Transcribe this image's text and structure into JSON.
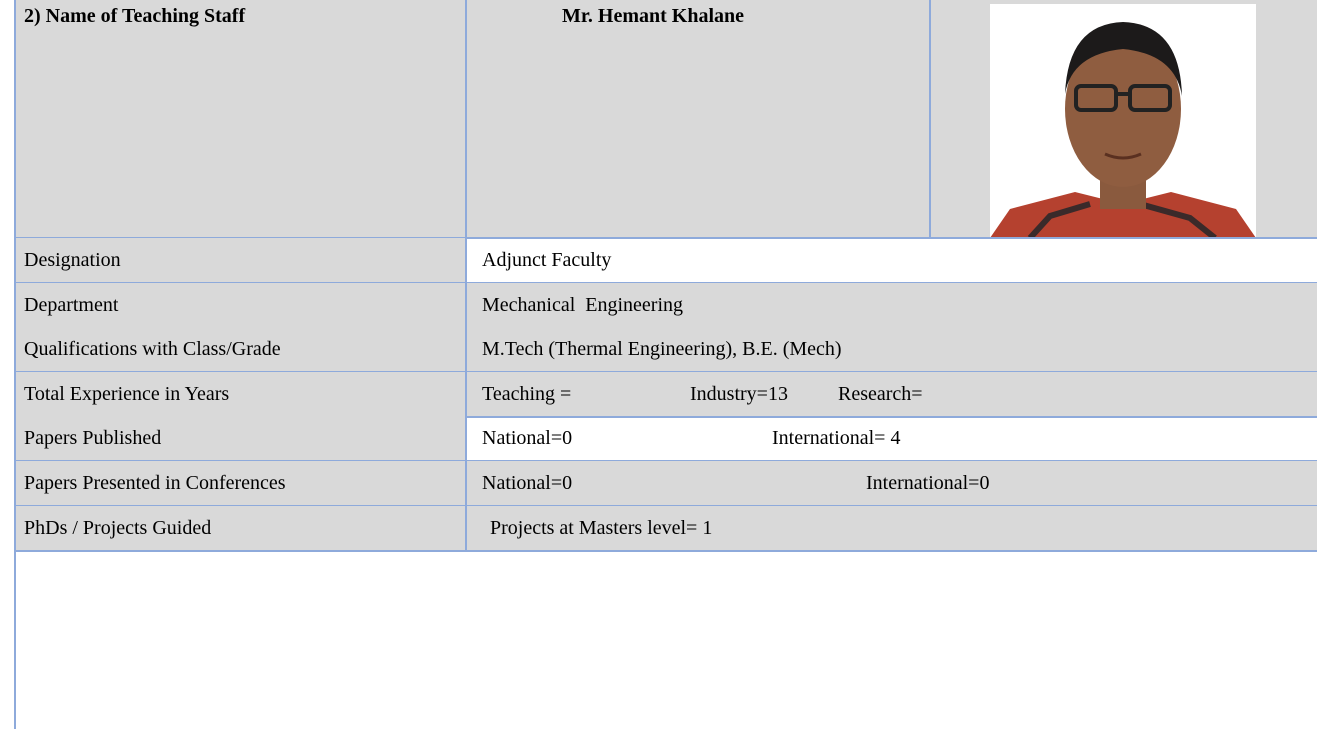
{
  "header": {
    "label": "2) Name of Teaching Staff",
    "name": "Mr. Hemant Khalane"
  },
  "rows": [
    {
      "label": "Designation",
      "values": [
        "Adjunct Faculty"
      ]
    },
    {
      "label": "Department",
      "values": [
        "Mechanical  Engineering"
      ]
    },
    {
      "label": "Qualifications with Class/Grade",
      "values": [
        "M.Tech (Thermal Engineering), B.E. (Mech)"
      ]
    },
    {
      "label": "Total Experience in Years",
      "values": [
        "Teaching =",
        "Industry=13",
        "Research="
      ]
    },
    {
      "label": "Papers Published",
      "values": [
        "National=0",
        "International= 4"
      ]
    },
    {
      "label": "Papers Presented in Conferences",
      "values": [
        "National=0",
        "International=0"
      ]
    },
    {
      "label": "PhDs / Projects Guided",
      "values": [
        "Projects at Masters level= 1"
      ]
    }
  ]
}
